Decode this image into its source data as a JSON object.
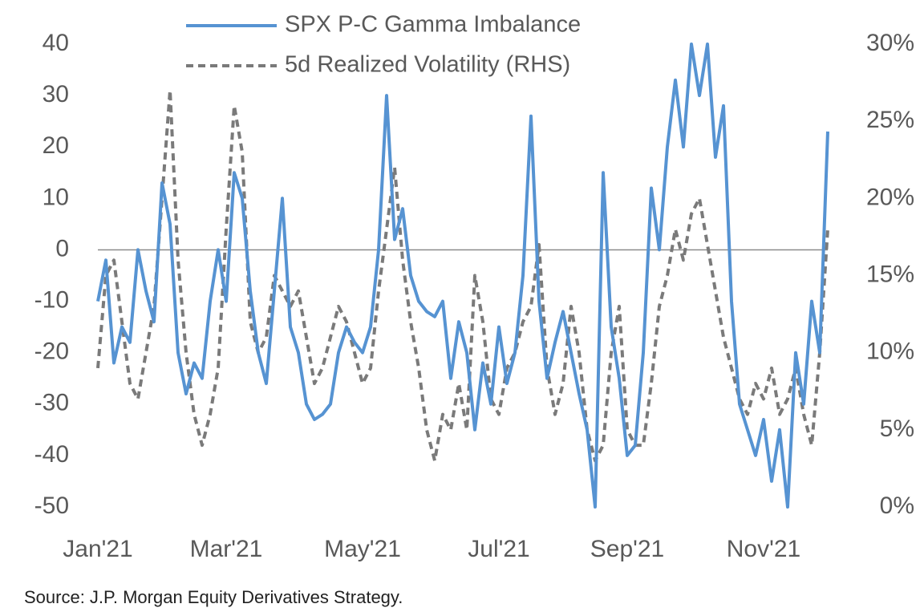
{
  "chart_data": {
    "type": "line",
    "categories": [
      "Jan'21",
      null,
      null,
      null,
      null,
      null,
      null,
      null,
      null,
      null,
      null,
      null,
      null,
      null,
      null,
      null,
      "Mar'21",
      null,
      null,
      null,
      null,
      null,
      null,
      null,
      null,
      null,
      null,
      null,
      null,
      null,
      null,
      null,
      null,
      "May'21",
      null,
      null,
      null,
      null,
      null,
      null,
      null,
      null,
      null,
      null,
      null,
      null,
      null,
      null,
      null,
      null,
      "Jul'21",
      null,
      null,
      null,
      null,
      null,
      null,
      null,
      null,
      null,
      null,
      null,
      null,
      null,
      null,
      null,
      "Sep'21",
      null,
      null,
      null,
      null,
      null,
      null,
      null,
      null,
      null,
      null,
      null,
      null,
      null,
      null,
      null,
      null,
      "Nov'21",
      null,
      null,
      null,
      null,
      null,
      null,
      null,
      null
    ],
    "series": [
      {
        "name": "SPX P-C Gamma Imbalance",
        "color": "#5693d2",
        "axis": "y",
        "values": [
          -10,
          -2,
          -22,
          -15,
          -18,
          0,
          -8,
          -14,
          13,
          5,
          -20,
          -28,
          -22,
          -25,
          -10,
          0,
          -10,
          15,
          10,
          -8,
          -20,
          -26,
          -8,
          10,
          -15,
          -20,
          -30,
          -33,
          -32,
          -30,
          -20,
          -15,
          -18,
          -20,
          -15,
          0,
          30,
          2,
          8,
          -5,
          -10,
          -12,
          -13,
          -10,
          -25,
          -14,
          -20,
          -35,
          -22,
          -30,
          -15,
          -26,
          -20,
          -5,
          26,
          -10,
          -25,
          -18,
          -12,
          -20,
          -28,
          -35,
          -50,
          15,
          -15,
          -25,
          -40,
          -38,
          -20,
          12,
          0,
          20,
          33,
          20,
          40,
          30,
          40,
          18,
          28,
          -10,
          -30,
          -35,
          -40,
          -33,
          -45,
          -35,
          -50,
          -20,
          -30,
          -10,
          -20,
          23
        ]
      },
      {
        "name": "5d Realized Volatility (RHS)",
        "color": "#7a7a7a",
        "axis": "y2",
        "values": [
          9,
          15,
          16,
          12,
          8,
          7,
          10,
          13,
          20,
          27,
          16,
          10,
          6,
          4,
          6,
          9,
          18,
          26,
          23,
          12,
          10,
          11,
          15,
          14,
          13,
          14,
          11,
          8,
          9,
          11,
          13,
          12,
          10,
          8,
          9,
          14,
          18,
          22,
          16,
          12,
          9,
          5,
          3,
          6,
          5,
          8,
          5,
          15,
          12,
          7,
          6,
          9,
          10,
          12,
          13,
          17,
          9,
          6,
          8,
          13,
          10,
          5,
          3,
          4,
          10,
          13,
          5,
          4,
          4,
          8,
          13,
          15,
          18,
          16,
          19,
          20,
          17,
          14,
          11,
          9,
          7,
          6,
          8,
          7,
          9,
          6,
          7,
          9,
          6,
          4,
          10,
          18
        ]
      }
    ],
    "ylim": [
      -50,
      40
    ],
    "yticks": [
      -50,
      -40,
      -30,
      -20,
      -10,
      0,
      10,
      20,
      30,
      40
    ],
    "y2lim": [
      0,
      30
    ],
    "y2ticks": [
      {
        "value": 0,
        "label": "0%"
      },
      {
        "value": 5,
        "label": "5%"
      },
      {
        "value": 10,
        "label": "10%"
      },
      {
        "value": 15,
        "label": "15%"
      },
      {
        "value": 20,
        "label": "20%"
      },
      {
        "value": 25,
        "label": "25%"
      },
      {
        "value": 30,
        "label": "30%"
      }
    ],
    "grid": false,
    "legend": "top",
    "source": "Source: J.P. Morgan Equity Derivatives Strategy."
  }
}
